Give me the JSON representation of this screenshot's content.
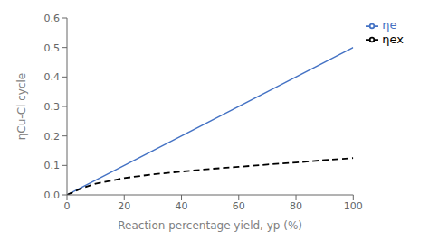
{
  "chart_data": {
    "type": "line",
    "title": "",
    "xlabel": "Reaction percentage yield, yp (%)",
    "ylabel": "ηCu-Cl cycle",
    "xlim": [
      0,
      100
    ],
    "ylim": [
      0,
      0.6
    ],
    "xticks": [
      0,
      20,
      40,
      60,
      80,
      100
    ],
    "yticks": [
      {
        "value": 0,
        "label": "0.0"
      },
      0.1,
      0.2,
      0.3,
      0.4,
      0.5,
      0.6
    ],
    "grid": false,
    "legend": "right",
    "series": [
      {
        "name": "ηe",
        "color": "#4472C4",
        "line_style": "solid",
        "x": [
          0,
          100
        ],
        "values": [
          0.0,
          0.5
        ]
      },
      {
        "name": "ηex",
        "color": "#000000",
        "line_style": "dashed",
        "x": [
          0,
          5,
          10,
          20,
          30,
          40,
          50,
          60,
          70,
          80,
          90,
          100
        ],
        "values": [
          0.0,
          0.022,
          0.038,
          0.057,
          0.07,
          0.079,
          0.088,
          0.095,
          0.103,
          0.11,
          0.118,
          0.125
        ]
      }
    ]
  }
}
